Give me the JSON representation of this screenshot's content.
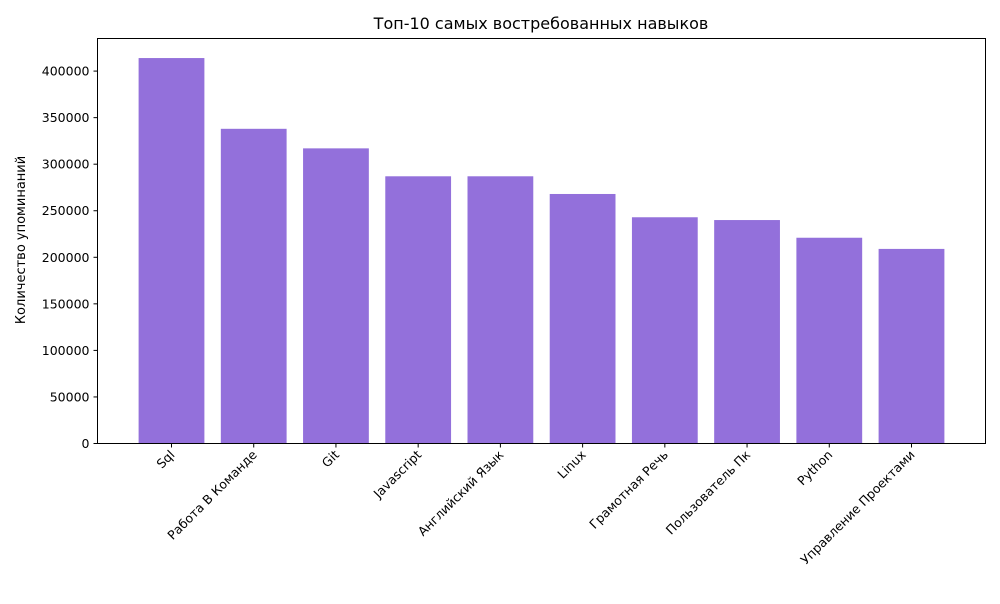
{
  "chart_data": {
    "type": "bar",
    "title": "Топ-10 самых востребованных навыков",
    "xlabel": "",
    "ylabel": "Количество упоминаний",
    "categories": [
      "Sql",
      "Работа В Команде",
      "Git",
      "Javascript",
      "Английский Язык",
      "Linux",
      "Грамотная Речь",
      "Пользователь Пк",
      "Python",
      "Управление Проектами"
    ],
    "values": [
      414000,
      338000,
      317000,
      287000,
      287000,
      268000,
      243000,
      240000,
      221000,
      209000
    ],
    "ylim": [
      0,
      435000
    ],
    "yticks": [
      0,
      50000,
      100000,
      150000,
      200000,
      250000,
      300000,
      350000,
      400000
    ],
    "bar_color": "#9370db",
    "grid": false,
    "legend": false
  }
}
